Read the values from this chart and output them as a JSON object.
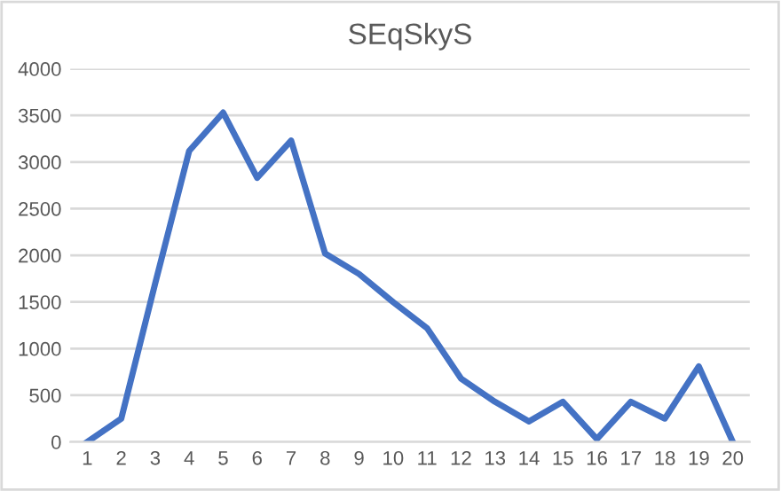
{
  "chart_data": {
    "type": "line",
    "title": "SEqSkyS",
    "categories": [
      "1",
      "2",
      "3",
      "4",
      "5",
      "6",
      "7",
      "8",
      "9",
      "10",
      "11",
      "12",
      "13",
      "14",
      "15",
      "16",
      "17",
      "18",
      "19",
      "20"
    ],
    "series": [
      {
        "color": "#4472c4",
        "values": [
          0,
          250,
          1700,
          3120,
          3530,
          2830,
          3230,
          2020,
          1800,
          1500,
          1220,
          680,
          430,
          220,
          430,
          30,
          430,
          250,
          810,
          0
        ]
      }
    ],
    "ylim": [
      0,
      4000
    ],
    "yticks": [
      0,
      500,
      1000,
      1500,
      2000,
      2500,
      3000,
      3500,
      4000
    ],
    "grid": "y",
    "marker": "none",
    "line_style": "solid"
  }
}
